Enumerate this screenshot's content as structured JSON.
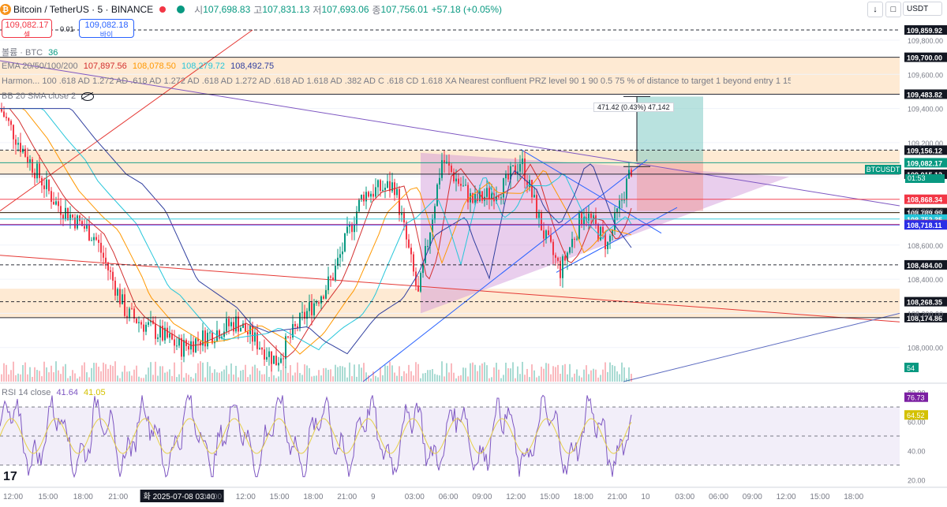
{
  "header": {
    "symbol": "Bitcoin / TetherUS · 5 · BINANCE",
    "open_label": "시",
    "open": "107,698.83",
    "high_label": "고",
    "high": "107,831.13",
    "low_label": "저",
    "low": "107,693.06",
    "close_label": "종",
    "close": "107,756.01",
    "change": "+57.18 (+0.05%)",
    "currency": "USDT"
  },
  "trade": {
    "sell_price": "109,082.17",
    "sell_label": "셀",
    "spread": "0.01",
    "buy_price": "109,082.18",
    "buy_label": "바이"
  },
  "indicators": {
    "volume_label": "볼륨 · BTC",
    "volume_value": "36",
    "ema_label": "EMA 20/50/100/200",
    "ema_values": [
      "107,897.56",
      "108,078.50",
      "108,279.72",
      "108,492.75"
    ],
    "harmonic": "Harmon... 100 .618 AD 1.272 AD .618 AD 1.272 AD .618 AD 1.272 AD .618 AD 1.618 AD .382 AD C .618 CD 1.618 XA Nearest confluent PRZ level 90 1 90 0.5 75 % of distance to target 1 beyond entry 1 15 250 4",
    "bb": "BB 20 SMA close 2",
    "rsi_label": "RSI 14 close",
    "rsi_value": "41.64",
    "rsi_ma": "41.05"
  },
  "measure_label": "471.42 (0.43%) 47,142",
  "symbol_tag": "BTCUSDT",
  "countdown": "01:53",
  "chart_data": {
    "type": "candlestick",
    "y_axis_ticks": [
      "109,800.00",
      "109,600.00",
      "109,400.00",
      "109,200.00",
      "109,000.00",
      "108,800.00",
      "108,600.00",
      "108,400.00",
      "108,200.00",
      "108,000.00"
    ],
    "ylim": [
      107800,
      109860
    ],
    "rsi_ticks": [
      "80.00",
      "60.00",
      "40.00",
      "20.00"
    ],
    "rsi_ylim": [
      18,
      82
    ],
    "x_labels": [
      "12:00",
      "15:00",
      "18:00",
      "21:00",
      "화 2025-07-08 03:40",
      "09:00",
      "12:00",
      "15:00",
      "18:00",
      "21:00",
      "9",
      "03:00",
      "06:00",
      "09:00",
      "12:00",
      "15:00",
      "18:00",
      "21:00",
      "10",
      "03:00",
      "06:00",
      "09:00",
      "12:00",
      "15:00",
      "18:00"
    ],
    "price_lines": [
      {
        "label": "109,859.92",
        "value": 109859.92,
        "color": "#131722",
        "dash": true
      },
      {
        "label": "109,700.00",
        "value": 109700.0,
        "color": "#131722",
        "dash": false
      },
      {
        "label": "109,483.82",
        "value": 109483.82,
        "color": "#131722",
        "dash": false
      },
      {
        "label": "109,156.12",
        "value": 109156.12,
        "color": "#131722",
        "dash": true
      },
      {
        "label": "109,082.17",
        "value": 109082.17,
        "color": "#089981",
        "dash": false
      },
      {
        "label": "109,015.12",
        "value": 109015.12,
        "color": "#131722",
        "dash": false
      },
      {
        "label": "108,868.34",
        "value": 108868.34,
        "color": "#f23645",
        "dash": false
      },
      {
        "label": "108,790.10",
        "value": 108790.1,
        "color": "#ff9800",
        "dash": false
      },
      {
        "label": "108,789.99",
        "value": 108789.99,
        "color": "#131722",
        "dash": false
      },
      {
        "label": "108,752.35",
        "value": 108752.35,
        "color": "#26c6da",
        "dash": false
      },
      {
        "label": "108,720.82",
        "value": 108720.82,
        "color": "#f23645",
        "dash": false
      },
      {
        "label": "108,718.11",
        "value": 108718.11,
        "color": "#2a2ee6",
        "dash": false
      },
      {
        "label": "108,484.00",
        "value": 108484.0,
        "color": "#131722",
        "dash": true
      },
      {
        "label": "108,268.35",
        "value": 108268.35,
        "color": "#131722",
        "dash": true
      },
      {
        "label": "108,174.86",
        "value": 108174.86,
        "color": "#131722",
        "dash": false
      }
    ],
    "volume_tag": "54",
    "rsi_tags": [
      {
        "label": "76.73",
        "value": 76.73,
        "color": "#7b1fa2"
      },
      {
        "label": "64.52",
        "value": 64.52,
        "color": "#d4c100"
      }
    ],
    "colors": {
      "up": "#089981",
      "down": "#f23645",
      "zone": "#fde3c4",
      "rsi": "#7e57c2",
      "rsi_ma": "#e6d04a"
    }
  }
}
